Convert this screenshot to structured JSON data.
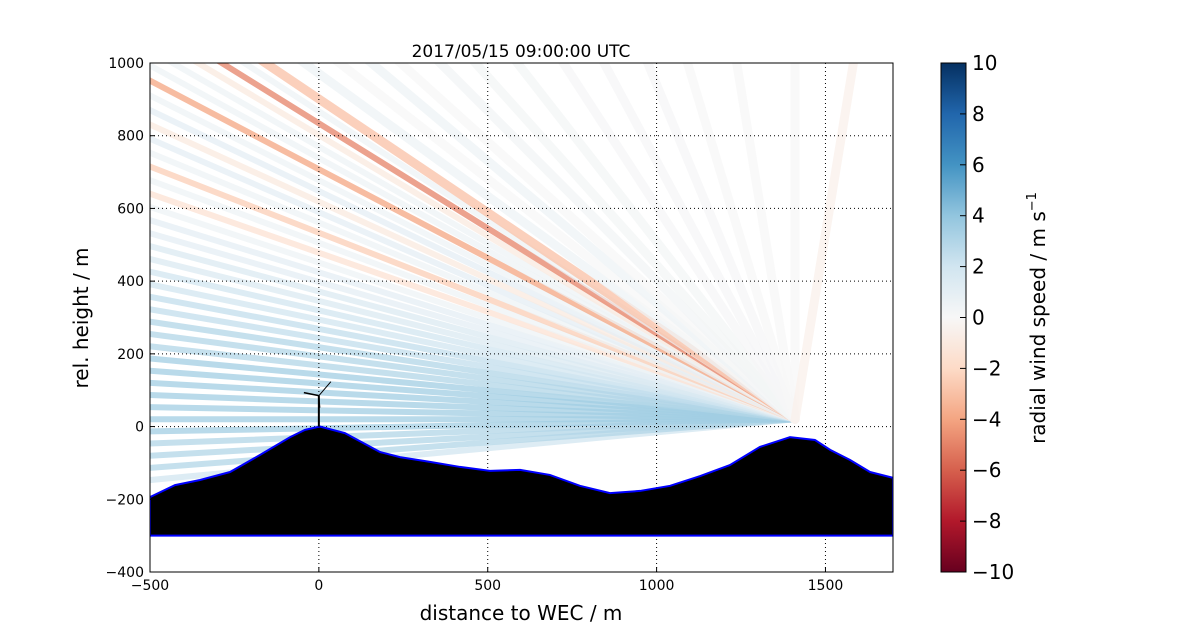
{
  "chart_data": {
    "type": "scatter",
    "title": "2017/05/15 09:00:00 UTC",
    "xlabel": "distance to WEC / m",
    "ylabel": "rel. height / m",
    "xlim": [
      -500,
      1700
    ],
    "ylim": [
      -400,
      1000
    ],
    "xticks": [
      -500,
      0,
      500,
      1000,
      1500
    ],
    "yticks": [
      -400,
      -200,
      0,
      200,
      400,
      600,
      800,
      1000
    ],
    "grid": true,
    "lidar_position": [
      1410,
      20
    ],
    "beams": {
      "elevations_deg": [
        -5,
        -4,
        -3,
        -2,
        -1,
        0,
        1,
        2,
        3,
        4,
        5,
        6,
        7,
        8,
        9,
        10,
        11,
        12,
        13,
        14,
        15,
        16,
        17,
        18,
        19,
        20,
        21,
        22,
        23,
        24,
        25,
        26,
        27,
        28,
        29,
        30,
        31,
        32,
        34,
        36,
        38,
        40,
        43,
        46,
        50,
        55,
        60,
        66,
        72,
        80,
        90,
        100
      ],
      "radial_wind_speed": [
        2,
        3,
        3,
        3,
        3.5,
        3.5,
        3.5,
        3.5,
        3.5,
        3.5,
        3.5,
        3,
        3,
        3,
        2.5,
        2.5,
        2,
        2,
        1.5,
        1.5,
        1,
        1,
        0.5,
        -1.5,
        0.5,
        -2.5,
        0.5,
        1,
        -1,
        1,
        0.5,
        -4,
        0.5,
        0.5,
        -1,
        -5,
        0.5,
        -3,
        0.5,
        0,
        0.5,
        0,
        0.3,
        0.2,
        0.2,
        0.1,
        0.1,
        0.1,
        0,
        0,
        0,
        -0.5
      ]
    },
    "terrain": {
      "x": [
        -500,
        -426,
        -352,
        -263,
        -174,
        -85,
        -41,
        3,
        77,
        181,
        240,
        329,
        418,
        507,
        596,
        684,
        773,
        862,
        951,
        1040,
        1129,
        1217,
        1306,
        1395,
        1469,
        1514,
        1573,
        1632,
        1700
      ],
      "y": [
        -194,
        -161,
        -147,
        -125,
        -78,
        -29,
        -9,
        0,
        -18,
        -70,
        -84,
        -97,
        -111,
        -122,
        -119,
        -133,
        -163,
        -183,
        -177,
        -163,
        -136,
        -106,
        -56,
        -29,
        -37,
        -64,
        -92,
        -125,
        -141
      ],
      "base": -300
    },
    "wec": {
      "x": 0,
      "hub_height": 85
    },
    "colorbar": {
      "label": "radial wind speed / m s",
      "label_sup": "−1",
      "range": [
        -10,
        10
      ],
      "ticks": [
        10,
        8,
        6,
        4,
        2,
        0,
        -2,
        -4,
        -6,
        -8,
        -10
      ],
      "tick_labels": [
        "10",
        "8",
        "6",
        "4",
        "2",
        "0",
        "−2",
        "−4",
        "−6",
        "−8",
        "−10"
      ],
      "colormap": "RdBu",
      "colors": [
        "#67001f",
        "#b2182b",
        "#d6604d",
        "#f4a582",
        "#fddbc7",
        "#f7f7f7",
        "#d1e5f0",
        "#92c5de",
        "#4393c3",
        "#2166ac",
        "#053061"
      ]
    }
  }
}
